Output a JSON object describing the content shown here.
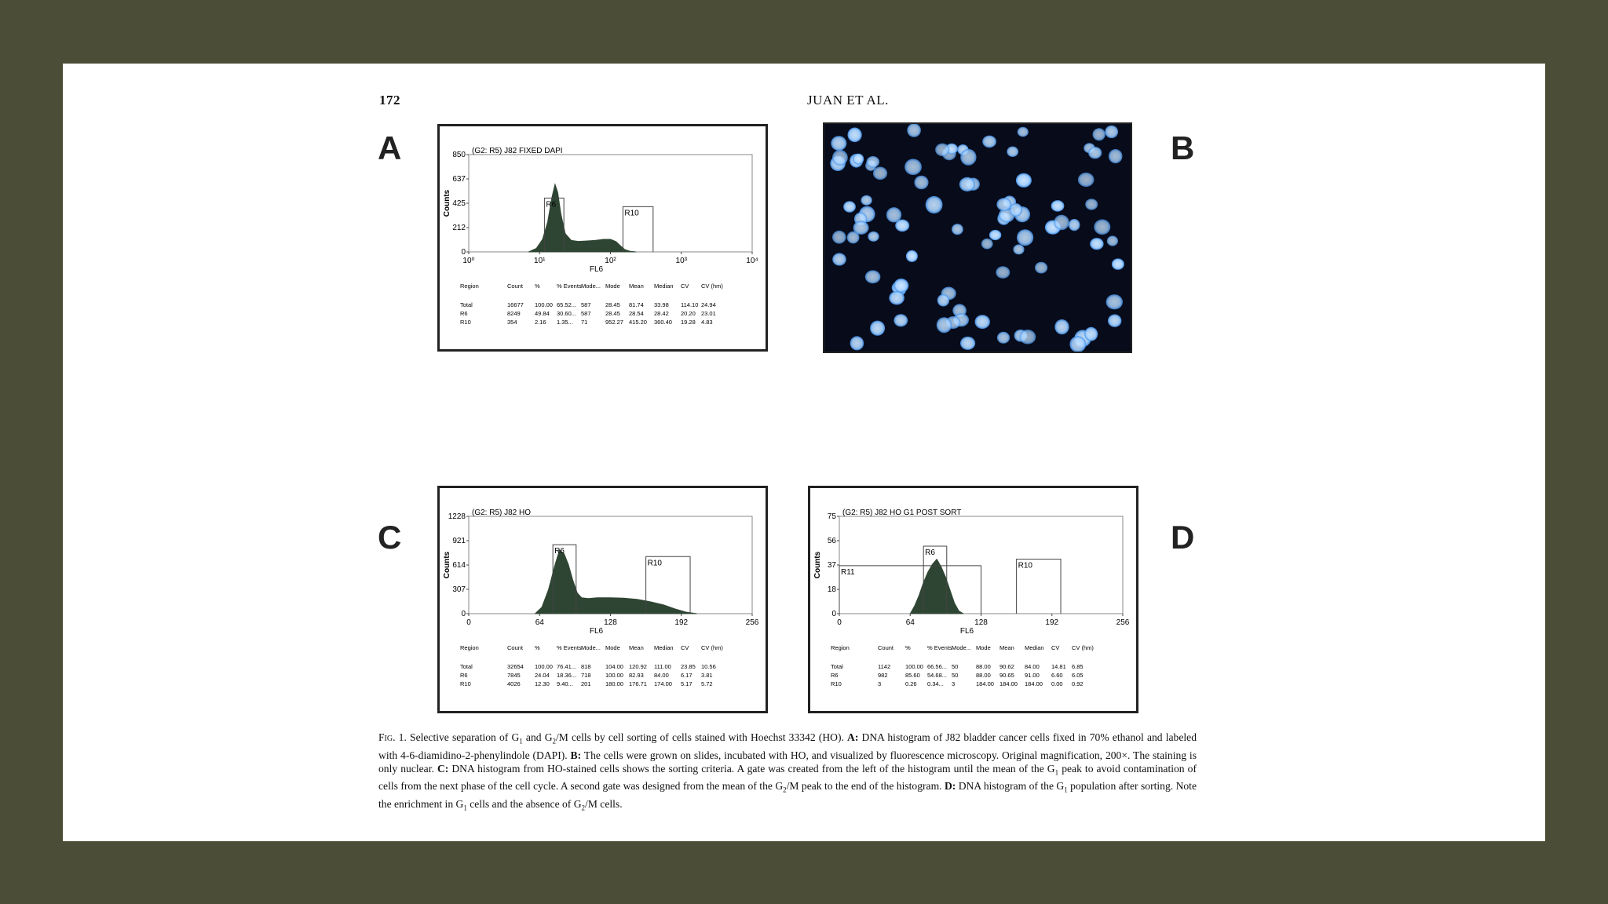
{
  "running_head": {
    "page_number": "172",
    "authors": "JUAN ET AL."
  },
  "panel_labels": {
    "A": "A",
    "B": "B",
    "C": "C",
    "D": "D"
  },
  "chart_data": [
    {
      "panel": "A",
      "type": "area",
      "title": "(G2: R5) J82 FIXED DAPI",
      "ylabel": "Counts",
      "xlabel": "FL6",
      "y_ticks": [
        "850",
        "637",
        "425",
        "212",
        "0"
      ],
      "x_ticks": [
        "10⁰",
        "10¹",
        "10²",
        "10³",
        "10⁴"
      ],
      "x_scale": "log",
      "xlim": [
        1,
        10000
      ],
      "ylim": [
        0,
        850
      ],
      "gates": [
        {
          "name": "R6",
          "x0": 11.7,
          "x1": 22,
          "top": 470
        },
        {
          "name": "R10",
          "x0": 150,
          "x1": 400,
          "top": 395
        }
      ],
      "series": [
        {
          "x": [
            7,
            9,
            11,
            13,
            15,
            16.5,
            18,
            20,
            23,
            28,
            35,
            45,
            60,
            80,
            100,
            120,
            140,
            160,
            190,
            230
          ],
          "values": [
            0,
            30,
            110,
            260,
            480,
            590,
            520,
            330,
            160,
            100,
            92,
            95,
            100,
            110,
            110,
            90,
            50,
            20,
            5,
            0
          ]
        }
      ],
      "stats": {
        "columns": [
          "Region",
          "Count",
          "%",
          "% Events",
          "Mode...",
          "Mode",
          "Mean",
          "Median",
          "CV",
          "CV (hm)"
        ],
        "rows": [
          [
            "Total",
            "16677",
            "100.00",
            "65.52...",
            "587",
            "28.45",
            "81.74",
            "33.98",
            "114.10",
            "24.94"
          ],
          [
            "R6",
            "8249",
            "49.84",
            "30.60...",
            "587",
            "28.45",
            "28.54",
            "28.42",
            "20.20",
            "23.01"
          ],
          [
            "R10",
            "354",
            "2.16",
            "1.35...",
            "71",
            "952.27",
            "415.20",
            "360.40",
            "19.28",
            "4.83"
          ]
        ]
      }
    },
    {
      "panel": "C",
      "type": "area",
      "title": "(G2: R5) J82 HO",
      "ylabel": "Counts",
      "xlabel": "FL6",
      "y_ticks": [
        "1228",
        "921",
        "614",
        "307",
        "0"
      ],
      "x_ticks": [
        "0",
        "64",
        "128",
        "192",
        "256"
      ],
      "xlim": [
        0,
        256
      ],
      "ylim": [
        0,
        1228
      ],
      "gates": [
        {
          "name": "R6",
          "x0": 76,
          "x1": 97,
          "top": 870
        },
        {
          "name": "R10",
          "x0": 160,
          "x1": 200,
          "top": 720
        }
      ],
      "series": [
        {
          "x": [
            60,
            66,
            72,
            78,
            82,
            86,
            90,
            94,
            98,
            102,
            108,
            116,
            128,
            140,
            152,
            164,
            176,
            186,
            196,
            206
          ],
          "values": [
            0,
            80,
            300,
            620,
            800,
            760,
            620,
            420,
            260,
            200,
            190,
            200,
            200,
            195,
            180,
            150,
            110,
            60,
            20,
            0
          ]
        }
      ],
      "stats": {
        "columns": [
          "Region",
          "Count",
          "%",
          "% Events",
          "Mode...",
          "Mode",
          "Mean",
          "Median",
          "CV",
          "CV (hm)"
        ],
        "rows": [
          [
            "Total",
            "32654",
            "100.00",
            "76.41...",
            "818",
            "104.00",
            "120.92",
            "111.00",
            "23.85",
            "10.56"
          ],
          [
            "R6",
            "7845",
            "24.04",
            "18.36...",
            "718",
            "100.00",
            "82.93",
            "84.00",
            "6.17",
            "3.81"
          ],
          [
            "R10",
            "4026",
            "12.30",
            "9.40...",
            "201",
            "180.00",
            "176.71",
            "174.00",
            "5.17",
            "5.72"
          ]
        ]
      }
    },
    {
      "panel": "D",
      "type": "area",
      "title": "(G2: R5) J82 HO G1 POST SORT",
      "ylabel": "Counts",
      "xlabel": "FL6",
      "y_ticks": [
        "75",
        "56",
        "37",
        "18",
        "0"
      ],
      "x_ticks": [
        "0",
        "64",
        "128",
        "192",
        "256"
      ],
      "xlim": [
        0,
        256
      ],
      "ylim": [
        0,
        75
      ],
      "gates": [
        {
          "name": "R6",
          "x0": 76,
          "x1": 97,
          "top": 52
        },
        {
          "name": "R11",
          "x0": 0,
          "x1": 128,
          "top": 37
        },
        {
          "name": "R10",
          "x0": 160,
          "x1": 200,
          "top": 42
        }
      ],
      "series": [
        {
          "x": [
            64,
            68,
            72,
            76,
            80,
            84,
            88,
            92,
            96,
            100,
            104,
            108,
            112
          ],
          "values": [
            0,
            6,
            14,
            24,
            32,
            38,
            42,
            36,
            28,
            18,
            8,
            2,
            0
          ]
        }
      ],
      "stats": {
        "columns": [
          "Region",
          "Count",
          "%",
          "% Events",
          "Mode...",
          "Mode",
          "Mean",
          "Median",
          "CV",
          "CV (hm)"
        ],
        "rows": [
          [
            "Total",
            "1142",
            "100.00",
            "66.56...",
            "50",
            "88.00",
            "90.62",
            "84.00",
            "14.81",
            "6.85"
          ],
          [
            "R6",
            "982",
            "85.60",
            "54.68...",
            "50",
            "88.00",
            "90.65",
            "91.00",
            "6.60",
            "6.05"
          ],
          [
            "R10",
            "3",
            "0.26",
            "0.34...",
            "3",
            "184.00",
            "184.00",
            "184.00",
            "0.00",
            "0.92"
          ]
        ]
      }
    }
  ],
  "caption": {
    "fig_label": "Fig. 1.",
    "part1": "Selective separation of G",
    "sub1": "1",
    "part2": " and G",
    "sub2": "2",
    "part3": "/M cells by cell sorting of cells stained with Hoechst 33342 (HO). ",
    "a_label": "A:",
    "part4": " DNA histogram of J82 bladder cancer cells fixed in 70% ethanol and labeled with 4-6-diamidino-2-phenylindole (DAPI). ",
    "b_label": "B:",
    "part5": " The cells were grown on slides, incubated with HO, and visualized by fluorescence microscopy. Original magnification, 200×. The staining is only nuclear. ",
    "c_label": "C:",
    "part6": " DNA histogram from HO-stained cells shows the sorting criteria. A gate was created from the left of the histogram until the mean of the G",
    "sub3": "1",
    "part7": " peak to avoid contamination of cells from the next phase of the cell cycle. A second gate was designed from the mean of the G",
    "sub4": "2",
    "part8": "/M peak to the end of the histogram. ",
    "d_label": "D:",
    "part9": " DNA histogram of the G",
    "sub5": "1",
    "part10": " population after sorting. Note the enrichment in G",
    "sub6": "1",
    "part11": " cells and the absence of G",
    "sub7": "2",
    "part12": "/M cells."
  },
  "colors": {
    "background": "#4b4d36",
    "page": "#ffffff",
    "histogram_fill": "#2f4533",
    "micrograph_bg": "#070b1a",
    "nucleus": "#cfe7ff",
    "nucleus_glow": "#3f8fe8"
  }
}
